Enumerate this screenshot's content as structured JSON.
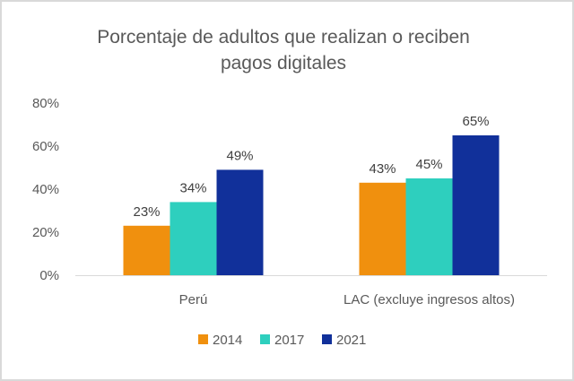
{
  "chart_data": {
    "type": "bar",
    "title_lines": [
      "Porcentaje de adultos que realizan o reciben",
      "pagos digitales"
    ],
    "categories": [
      "Perú",
      "LAC (excluye ingresos altos)"
    ],
    "series": [
      {
        "name": "2014",
        "values": [
          23,
          43
        ],
        "color": "#f0900e"
      },
      {
        "name": "2017",
        "values": [
          34,
          45
        ],
        "color": "#2ecfbe"
      },
      {
        "name": "2021",
        "values": [
          49,
          65
        ],
        "color": "#11309a"
      }
    ],
    "value_labels": [
      [
        "23%",
        "43%"
      ],
      [
        "34%",
        "45%"
      ],
      [
        "49%",
        "65%"
      ]
    ],
    "ylim": [
      0,
      80
    ],
    "yticks": [
      0,
      20,
      40,
      60,
      80
    ],
    "ytick_labels": [
      "0%",
      "20%",
      "40%",
      "60%",
      "80%"
    ],
    "xlabel": "",
    "ylabel": "",
    "grid": false,
    "legend_position": "bottom"
  }
}
